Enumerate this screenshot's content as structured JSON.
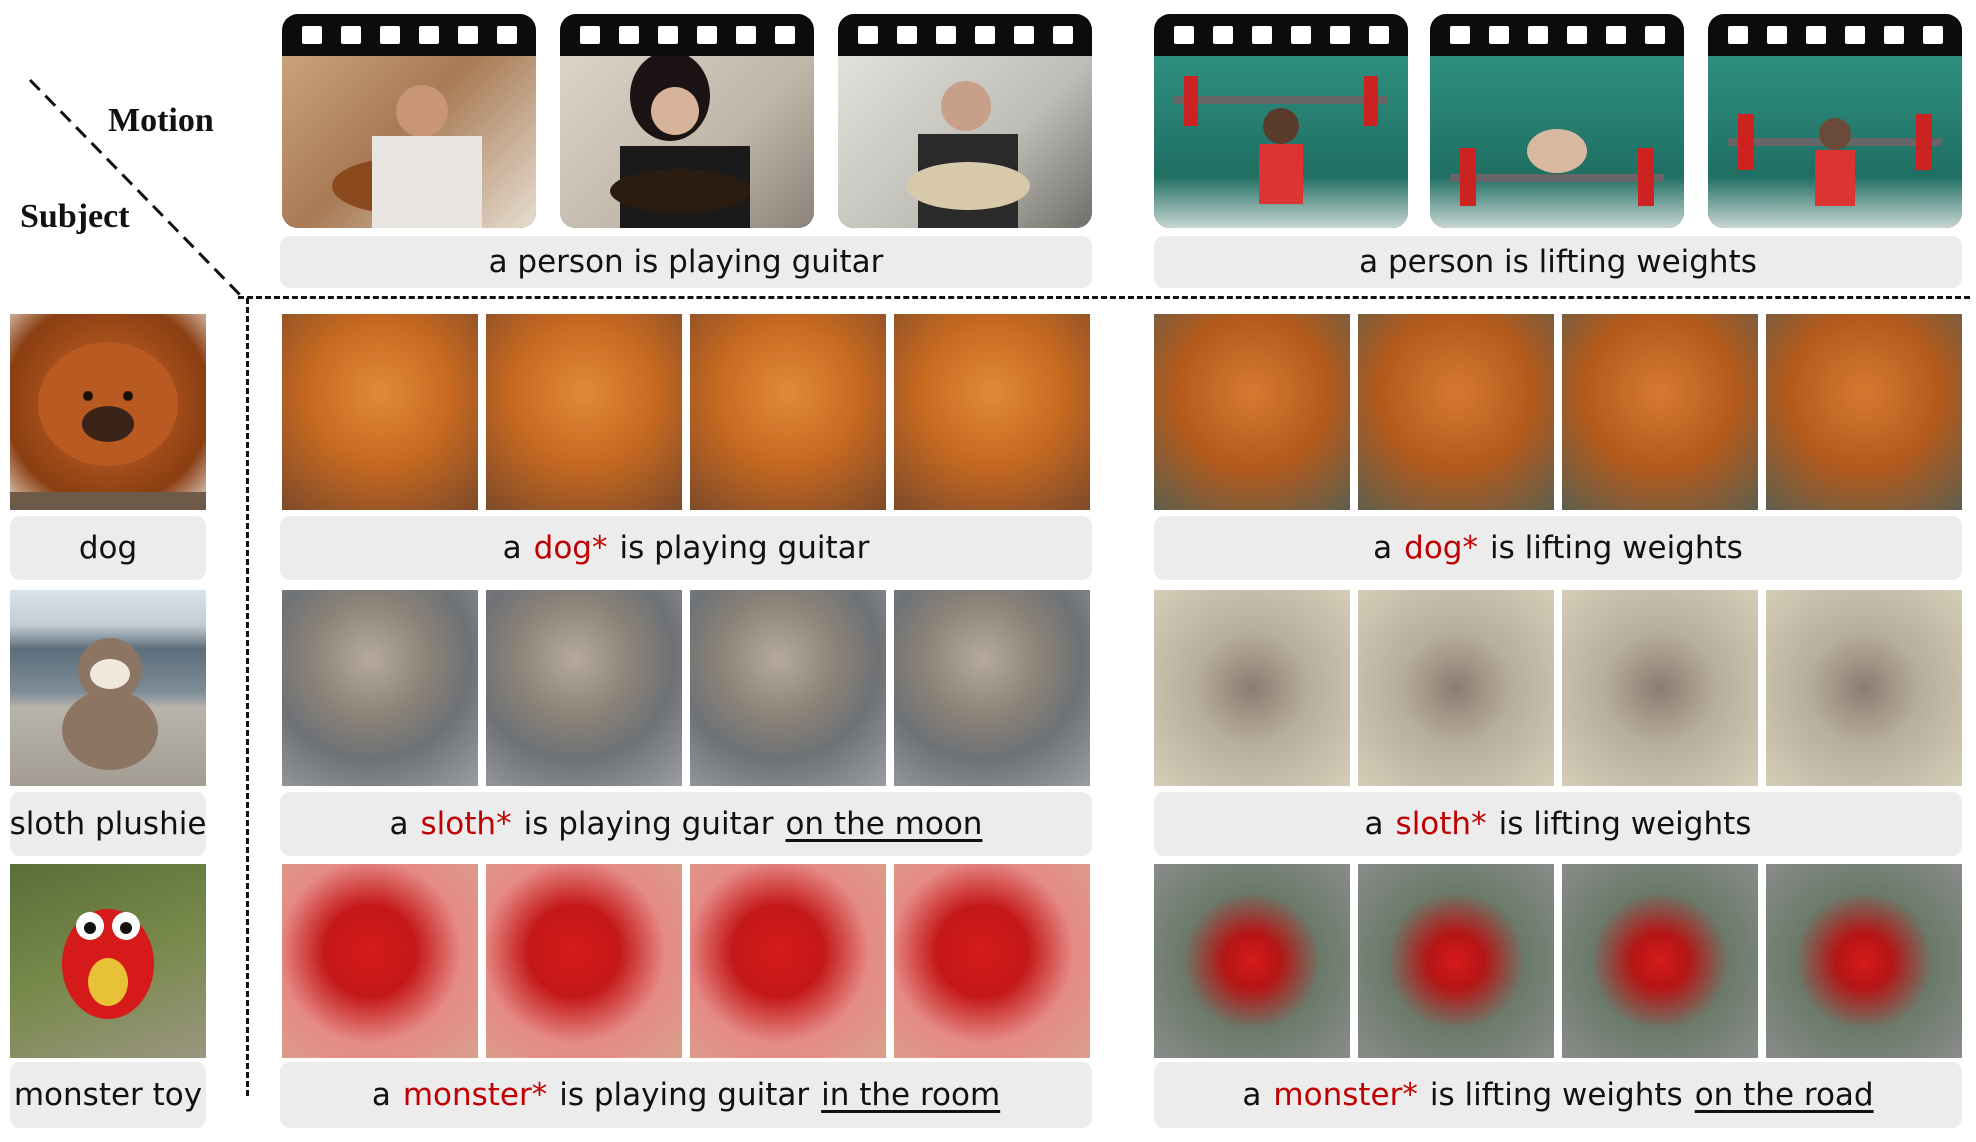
{
  "corner": {
    "motion_label": "Motion",
    "subject_label": "Subject"
  },
  "motions": [
    {
      "caption": "a person is playing guitar"
    },
    {
      "caption": "a person is lifting weights"
    }
  ],
  "subjects": [
    {
      "label": "dog"
    },
    {
      "label": "sloth plushie"
    },
    {
      "label": "monster toy"
    }
  ],
  "results": {
    "guitar": [
      {
        "pre": "a",
        "token": "dog*",
        "post": "is playing guitar",
        "extra": ""
      },
      {
        "pre": "a",
        "token": "sloth*",
        "post": "is playing guitar",
        "extra": "on the moon"
      },
      {
        "pre": "a",
        "token": "monster*",
        "post": "is playing guitar",
        "extra": "in the room"
      }
    ],
    "weights": [
      {
        "pre": "a",
        "token": "dog*",
        "post": "is lifting weights",
        "extra": ""
      },
      {
        "pre": "a",
        "token": "sloth*",
        "post": "is lifting weights",
        "extra": ""
      },
      {
        "pre": "a",
        "token": "monster*",
        "post": "is lifting weights",
        "extra": "on the road"
      }
    ]
  },
  "colors": {
    "token": "#c00000",
    "caption_bg": "#ececec",
    "film": "#0c0c0c"
  }
}
